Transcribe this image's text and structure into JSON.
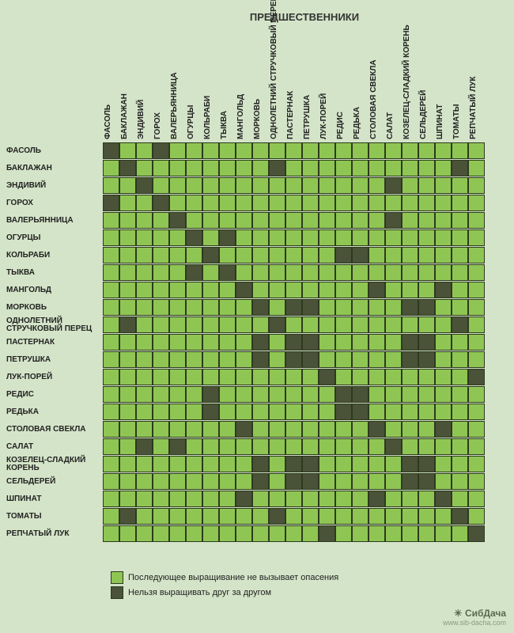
{
  "title": "ПРЕДШЕСТВЕННИКИ",
  "crops": [
    "ФАСОЛЬ",
    "БАКЛАЖАН",
    "ЭНДИВИЙ",
    "ГОРОХ",
    "ВАЛЕРЬЯННИЦА",
    "ОГУРЦЫ",
    "КОЛЬРАБИ",
    "ТЫКВА",
    "МАНГОЛЬД",
    "МОРКОВЬ",
    "ОДНОЛЕТНИЙ СТРУЧКОВЫЙ ПЕРЕЦ",
    "ПАСТЕРНАК",
    "ПЕТРУШКА",
    "ЛУК-ПОРЕЙ",
    "РЕДИС",
    "РЕДЬКА",
    "СТОЛОВАЯ СВЕКЛА",
    "САЛАТ",
    "КОЗЕЛЕЦ-СЛАДКИЙ КОРЕНЬ",
    "СЕЛЬДЕРЕЙ",
    "ШПИНАТ",
    "ТОМАТЫ",
    "РЕПЧАТЫЙ ЛУК"
  ],
  "colors": {
    "ok": "#8fc653",
    "bad": "#4a5238",
    "background": "#d4e4c8",
    "border": "#2d3a1e",
    "text": "#222222"
  },
  "cell_size": 21,
  "row_label_width": 118,
  "legend": {
    "ok": "Последующее выращивание не вызывает опасения",
    "bad": "Нельзя выращивать друг за другом"
  },
  "watermark": {
    "logo": "☀ СибДача",
    "url": "www.sib-dacha.com"
  },
  "matrix": [
    [
      1,
      0,
      0,
      1,
      0,
      0,
      0,
      0,
      0,
      0,
      0,
      0,
      0,
      0,
      0,
      0,
      0,
      0,
      0,
      0,
      0,
      0,
      0
    ],
    [
      0,
      1,
      0,
      0,
      0,
      0,
      0,
      0,
      0,
      0,
      1,
      0,
      0,
      0,
      0,
      0,
      0,
      0,
      0,
      0,
      0,
      1,
      0
    ],
    [
      0,
      0,
      1,
      0,
      0,
      0,
      0,
      0,
      0,
      0,
      0,
      0,
      0,
      0,
      0,
      0,
      0,
      1,
      0,
      0,
      0,
      0,
      0
    ],
    [
      1,
      0,
      0,
      1,
      0,
      0,
      0,
      0,
      0,
      0,
      0,
      0,
      0,
      0,
      0,
      0,
      0,
      0,
      0,
      0,
      0,
      0,
      0
    ],
    [
      0,
      0,
      0,
      0,
      1,
      0,
      0,
      0,
      0,
      0,
      0,
      0,
      0,
      0,
      0,
      0,
      0,
      1,
      0,
      0,
      0,
      0,
      0
    ],
    [
      0,
      0,
      0,
      0,
      0,
      1,
      0,
      1,
      0,
      0,
      0,
      0,
      0,
      0,
      0,
      0,
      0,
      0,
      0,
      0,
      0,
      0,
      0
    ],
    [
      0,
      0,
      0,
      0,
      0,
      0,
      1,
      0,
      0,
      0,
      0,
      0,
      0,
      0,
      1,
      1,
      0,
      0,
      0,
      0,
      0,
      0,
      0
    ],
    [
      0,
      0,
      0,
      0,
      0,
      1,
      0,
      1,
      0,
      0,
      0,
      0,
      0,
      0,
      0,
      0,
      0,
      0,
      0,
      0,
      0,
      0,
      0
    ],
    [
      0,
      0,
      0,
      0,
      0,
      0,
      0,
      0,
      1,
      0,
      0,
      0,
      0,
      0,
      0,
      0,
      1,
      0,
      0,
      0,
      1,
      0,
      0
    ],
    [
      0,
      0,
      0,
      0,
      0,
      0,
      0,
      0,
      0,
      1,
      0,
      1,
      1,
      0,
      0,
      0,
      0,
      0,
      1,
      1,
      0,
      0,
      0
    ],
    [
      0,
      1,
      0,
      0,
      0,
      0,
      0,
      0,
      0,
      0,
      1,
      0,
      0,
      0,
      0,
      0,
      0,
      0,
      0,
      0,
      0,
      1,
      0
    ],
    [
      0,
      0,
      0,
      0,
      0,
      0,
      0,
      0,
      0,
      1,
      0,
      1,
      1,
      0,
      0,
      0,
      0,
      0,
      1,
      1,
      0,
      0,
      0
    ],
    [
      0,
      0,
      0,
      0,
      0,
      0,
      0,
      0,
      0,
      1,
      0,
      1,
      1,
      0,
      0,
      0,
      0,
      0,
      1,
      1,
      0,
      0,
      0
    ],
    [
      0,
      0,
      0,
      0,
      0,
      0,
      0,
      0,
      0,
      0,
      0,
      0,
      0,
      1,
      0,
      0,
      0,
      0,
      0,
      0,
      0,
      0,
      1
    ],
    [
      0,
      0,
      0,
      0,
      0,
      0,
      1,
      0,
      0,
      0,
      0,
      0,
      0,
      0,
      1,
      1,
      0,
      0,
      0,
      0,
      0,
      0,
      0
    ],
    [
      0,
      0,
      0,
      0,
      0,
      0,
      1,
      0,
      0,
      0,
      0,
      0,
      0,
      0,
      1,
      1,
      0,
      0,
      0,
      0,
      0,
      0,
      0
    ],
    [
      0,
      0,
      0,
      0,
      0,
      0,
      0,
      0,
      1,
      0,
      0,
      0,
      0,
      0,
      0,
      0,
      1,
      0,
      0,
      0,
      1,
      0,
      0
    ],
    [
      0,
      0,
      1,
      0,
      1,
      0,
      0,
      0,
      0,
      0,
      0,
      0,
      0,
      0,
      0,
      0,
      0,
      1,
      0,
      0,
      0,
      0,
      0
    ],
    [
      0,
      0,
      0,
      0,
      0,
      0,
      0,
      0,
      0,
      1,
      0,
      1,
      1,
      0,
      0,
      0,
      0,
      0,
      1,
      1,
      0,
      0,
      0
    ],
    [
      0,
      0,
      0,
      0,
      0,
      0,
      0,
      0,
      0,
      1,
      0,
      1,
      1,
      0,
      0,
      0,
      0,
      0,
      1,
      1,
      0,
      0,
      0
    ],
    [
      0,
      0,
      0,
      0,
      0,
      0,
      0,
      0,
      1,
      0,
      0,
      0,
      0,
      0,
      0,
      0,
      1,
      0,
      0,
      0,
      1,
      0,
      0
    ],
    [
      0,
      1,
      0,
      0,
      0,
      0,
      0,
      0,
      0,
      0,
      1,
      0,
      0,
      0,
      0,
      0,
      0,
      0,
      0,
      0,
      0,
      1,
      0
    ],
    [
      0,
      0,
      0,
      0,
      0,
      0,
      0,
      0,
      0,
      0,
      0,
      0,
      0,
      1,
      0,
      0,
      0,
      0,
      0,
      0,
      0,
      0,
      1
    ]
  ]
}
